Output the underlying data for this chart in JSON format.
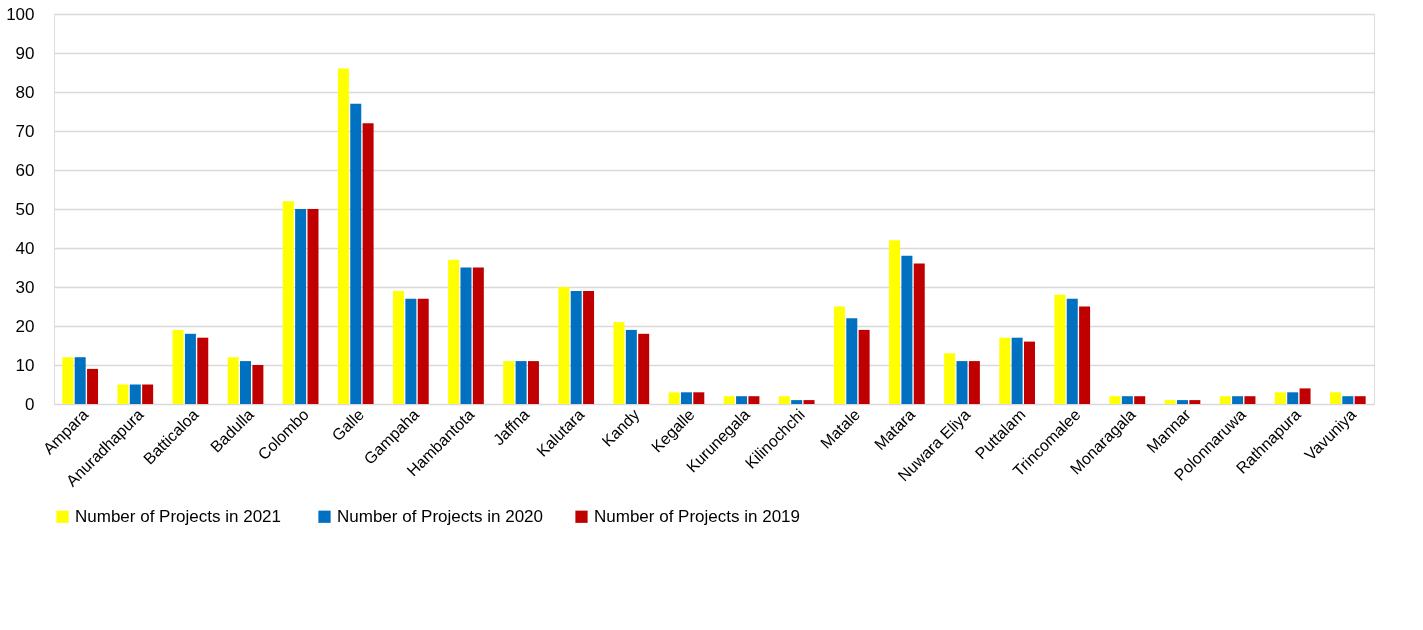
{
  "chart_data": {
    "type": "bar",
    "categories": [
      "Ampara",
      "Anuradhapura",
      "Batticaloa",
      "Badulla",
      "Colombo",
      "Galle",
      "Gampaha",
      "Hambantota",
      "Jaffna",
      "Kalutara",
      "Kandy",
      "Kegalle",
      "Kurunegala",
      "Kilinochchi",
      "Matale",
      "Matara",
      "Nuwara Eliya",
      "Puttalam",
      "Trincomalee",
      "Monaragala",
      "Mannar",
      "Polonnaruwa",
      "Rathnapura",
      "Vavuniya"
    ],
    "series": [
      {
        "name": "Number of Projects in  2021",
        "color": "#ffff00",
        "values": [
          12,
          5,
          19,
          12,
          52,
          86,
          29,
          37,
          11,
          30,
          21,
          3,
          2,
          2,
          25,
          42,
          13,
          17,
          28,
          2,
          1,
          2,
          3,
          3
        ]
      },
      {
        "name": "Number of Projects in 2020",
        "color": "#0070c0",
        "values": [
          12,
          5,
          18,
          11,
          50,
          77,
          27,
          35,
          11,
          29,
          19,
          3,
          2,
          1,
          22,
          38,
          11,
          17,
          27,
          2,
          1,
          2,
          3,
          2
        ]
      },
      {
        "name": "Number of Projects  in 2019",
        "color": "#c00000",
        "values": [
          9,
          5,
          17,
          10,
          50,
          72,
          27,
          35,
          11,
          29,
          18,
          3,
          2,
          1,
          19,
          36,
          11,
          16,
          25,
          2,
          1,
          2,
          4,
          2
        ]
      }
    ],
    "ylim": [
      0,
      100
    ],
    "yticks": [
      0,
      10,
      20,
      30,
      40,
      50,
      60,
      70,
      80,
      90,
      100
    ],
    "grid": "y",
    "legend": "bottom"
  }
}
